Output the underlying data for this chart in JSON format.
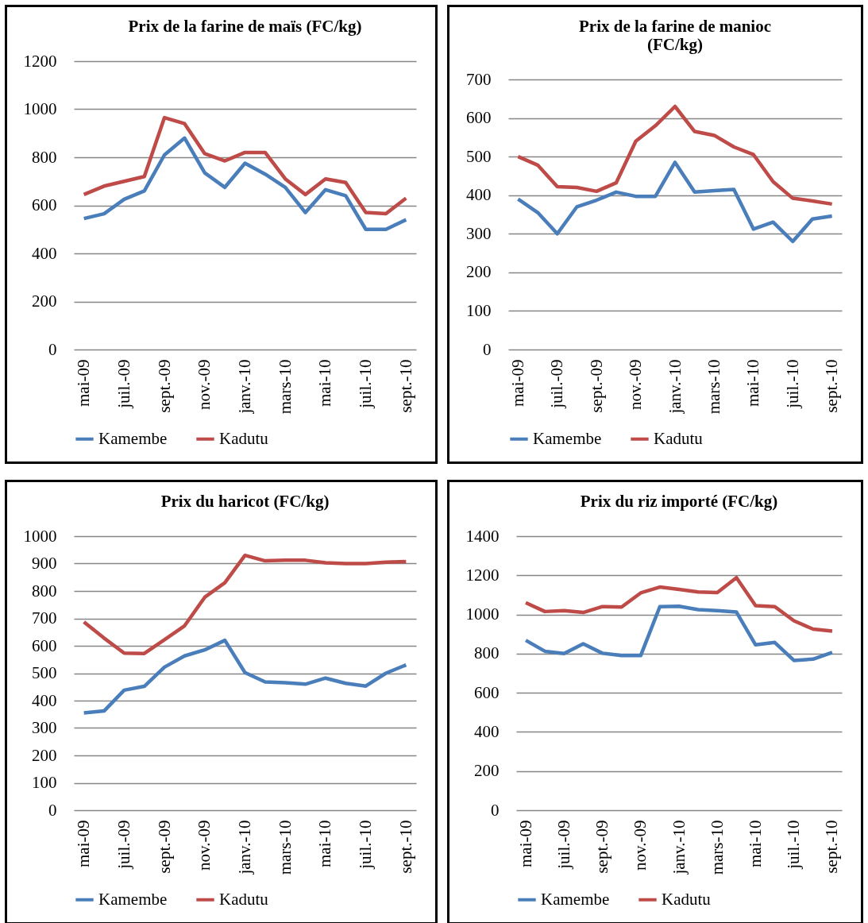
{
  "chart_data": [
    {
      "type": "line",
      "title": "Prix de la farine de maïs (FC/kg)",
      "categories": [
        "mai-09",
        null,
        "juil.-09",
        null,
        "sept.-09",
        null,
        "nov.-09",
        null,
        "janv.-10",
        null,
        "mars-10",
        null,
        "mai-10",
        null,
        "juil.-10",
        null,
        "sept.-10"
      ],
      "ylim": [
        0,
        1200
      ],
      "yticks": [
        0,
        200,
        400,
        600,
        800,
        1000,
        1200
      ],
      "grid": "y",
      "legend": "bottom",
      "series": [
        {
          "name": "Kamembe",
          "color": "#4a7ebb",
          "values": [
            545,
            565,
            625,
            660,
            810,
            880,
            735,
            675,
            775,
            730,
            675,
            570,
            665,
            640,
            500,
            500,
            540
          ]
        },
        {
          "name": "Kadutu",
          "color": "#be4b48",
          "values": [
            645,
            680,
            700,
            720,
            965,
            940,
            815,
            785,
            820,
            820,
            710,
            645,
            710,
            695,
            570,
            565,
            630
          ]
        }
      ]
    },
    {
      "type": "line",
      "title": "Prix  de la farine de manioc\n(FC/kg)",
      "categories": [
        "mai-09",
        null,
        "juil.-09",
        null,
        "sept.-09",
        null,
        "nov.-09",
        null,
        "janv.-10",
        null,
        "mars-10",
        null,
        "mai-10",
        null,
        "juil.-10",
        null,
        "sept.-10"
      ],
      "ylim": [
        0,
        700
      ],
      "yticks": [
        0,
        100,
        200,
        300,
        400,
        500,
        600,
        700
      ],
      "grid": "y",
      "legend": "bottom",
      "series": [
        {
          "name": "Kamembe",
          "color": "#4a7ebb",
          "values": [
            390,
            355,
            300,
            370,
            387,
            408,
            397,
            397,
            485,
            408,
            412,
            415,
            312,
            330,
            280,
            338,
            346
          ]
        },
        {
          "name": "Kadutu",
          "color": "#be4b48",
          "values": [
            500,
            478,
            422,
            420,
            410,
            432,
            540,
            580,
            630,
            565,
            555,
            525,
            505,
            435,
            392,
            385,
            377
          ]
        }
      ]
    },
    {
      "type": "line",
      "title": "Prix du haricot (FC/kg)",
      "categories": [
        "mai-09",
        null,
        "juil.-09",
        null,
        "sept.-09",
        null,
        "nov.-09",
        null,
        "janv.-10",
        null,
        "mars-10",
        null,
        "mai-10",
        null,
        "juil.-10",
        null,
        "sept.-10"
      ],
      "ylim": [
        0,
        1000
      ],
      "yticks": [
        0,
        100,
        200,
        300,
        400,
        500,
        600,
        700,
        800,
        900,
        1000
      ],
      "grid": "y",
      "legend": "bottom",
      "series": [
        {
          "name": "Kamembe",
          "color": "#4a7ebb",
          "values": [
            355,
            362,
            438,
            452,
            522,
            563,
            585,
            620,
            502,
            468,
            465,
            460,
            482,
            463,
            453,
            500,
            530
          ]
        },
        {
          "name": "Kadutu",
          "color": "#be4b48",
          "values": [
            687,
            628,
            573,
            572,
            622,
            673,
            777,
            830,
            930,
            910,
            912,
            912,
            903,
            900,
            900,
            905,
            907
          ]
        }
      ]
    },
    {
      "type": "line",
      "title": "Prix du riz importé (FC/kg)",
      "categories": [
        "mai-09",
        null,
        "juil.-09",
        null,
        "sept.-09",
        null,
        "nov.-09",
        null,
        "janv.-10",
        null,
        "mars-10",
        null,
        "mai-10",
        null,
        "juil.-10",
        null,
        "sept.-10"
      ],
      "ylim": [
        0,
        1400
      ],
      "yticks": [
        0,
        200,
        400,
        600,
        800,
        1000,
        1200,
        1400
      ],
      "grid": "y",
      "legend": "bottom",
      "series": [
        {
          "name": "Kamembe",
          "color": "#4a7ebb",
          "values": [
            868,
            812,
            800,
            850,
            802,
            790,
            790,
            1040,
            1042,
            1025,
            1020,
            1012,
            845,
            857,
            765,
            772,
            806
          ]
        },
        {
          "name": "Kadutu",
          "color": "#be4b48",
          "values": [
            1060,
            1015,
            1020,
            1010,
            1040,
            1038,
            1110,
            1140,
            1128,
            1115,
            1112,
            1188,
            1045,
            1040,
            968,
            925,
            915
          ]
        }
      ]
    }
  ]
}
